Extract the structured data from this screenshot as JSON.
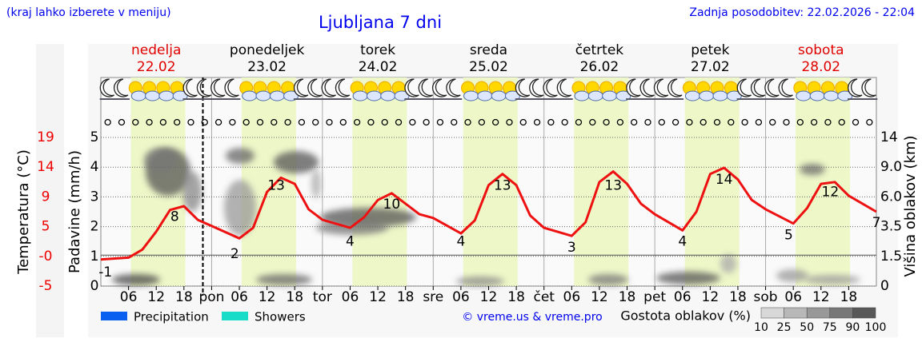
{
  "chart_data": {
    "type": "meteogram",
    "title": "Ljubljana 7 dni",
    "subtitle": "(kraj lahko izberete v meniju)",
    "updated": "Zadnja posodobitev: 22.02.2026 - 22:04",
    "credit": "© vreme.us & vreme.pro",
    "temp_label": "Temperatura (°C)",
    "precip_label": "Padavine (mm/h)",
    "cloud_height_label": "Višina oblakov (km)",
    "days": [
      {
        "name": "nedelja",
        "date": "22.02",
        "color": "#e00000"
      },
      {
        "name": "ponedeljek",
        "date": "23.02",
        "color": "#000000"
      },
      {
        "name": "torek",
        "date": "24.02",
        "color": "#000000"
      },
      {
        "name": "sreda",
        "date": "25.02",
        "color": "#000000"
      },
      {
        "name": "četrtek",
        "date": "26.02",
        "color": "#000000"
      },
      {
        "name": "petek",
        "date": "27.02",
        "color": "#000000"
      },
      {
        "name": "sobota",
        "date": "28.02",
        "color": "#e00000"
      }
    ],
    "xlim": [
      0,
      168
    ],
    "xticks": [
      {
        "value": 6,
        "label": "06"
      },
      {
        "value": 12,
        "label": "12"
      },
      {
        "value": 18,
        "label": "18"
      },
      {
        "value": 24,
        "label": "pon"
      },
      {
        "value": 30,
        "label": "06"
      },
      {
        "value": 36,
        "label": "12"
      },
      {
        "value": 42,
        "label": "18"
      },
      {
        "value": 48,
        "label": "tor"
      },
      {
        "value": 54,
        "label": "06"
      },
      {
        "value": 60,
        "label": "12"
      },
      {
        "value": 66,
        "label": "18"
      },
      {
        "value": 72,
        "label": "sre"
      },
      {
        "value": 78,
        "label": "06"
      },
      {
        "value": 84,
        "label": "12"
      },
      {
        "value": 90,
        "label": "18"
      },
      {
        "value": 96,
        "label": "čet"
      },
      {
        "value": 102,
        "label": "06"
      },
      {
        "value": 108,
        "label": "12"
      },
      {
        "value": 114,
        "label": "18"
      },
      {
        "value": 120,
        "label": "pet"
      },
      {
        "value": 126,
        "label": "06"
      },
      {
        "value": 132,
        "label": "12"
      },
      {
        "value": 138,
        "label": "18"
      },
      {
        "value": 144,
        "label": "sob"
      },
      {
        "value": 150,
        "label": "06"
      },
      {
        "value": 156,
        "label": "12"
      },
      {
        "value": 162,
        "label": "18"
      }
    ],
    "daylight_hours": [
      6.5,
      18.3
    ],
    "now_x": 22.1,
    "ylim": [
      0,
      5
    ],
    "yticks": [
      0,
      1,
      2,
      3,
      4,
      5
    ],
    "temp_lim": [
      -5,
      19
    ],
    "temp_ticks": [
      {
        "value": -5,
        "label": "-5"
      },
      {
        "value": -0.2,
        "label": "-0"
      },
      {
        "value": 4.6,
        "label": "5"
      },
      {
        "value": 9.4,
        "label": "9"
      },
      {
        "value": 14.2,
        "label": "14"
      },
      {
        "value": 19,
        "label": "19"
      }
    ],
    "temp_color": "#ee0000",
    "y2lim": [
      0,
      14
    ],
    "y2ticks": [
      0,
      1.5,
      3.5,
      {
        "value": 6,
        "label": "6.0"
      },
      {
        "value": 9,
        "label": "9.0"
      },
      14
    ],
    "grid": true,
    "temperature": {
      "color": "#ee1111",
      "x": [
        0,
        6,
        9,
        12,
        15,
        18,
        21,
        24,
        30,
        33,
        36,
        39,
        42,
        45,
        48,
        54,
        57,
        60,
        63,
        66,
        69,
        72,
        78,
        81,
        84,
        87,
        90,
        93,
        96,
        102,
        105,
        108,
        111,
        114,
        117,
        120,
        126,
        129,
        132,
        135,
        138,
        141,
        144,
        150,
        153,
        156,
        159,
        162,
        168
      ],
      "values": [
        -0.7,
        -0.4,
        0.9,
        3.8,
        7.3,
        7.9,
        5.7,
        4.7,
        2.7,
        4.4,
        10.2,
        12.5,
        11.5,
        7.4,
        5.7,
        4.4,
        6.1,
        8.9,
        10.0,
        8.3,
        6.6,
        6.0,
        3.5,
        5.6,
        11.3,
        13.1,
        11.3,
        6.4,
        4.4,
        3.1,
        5.3,
        11.8,
        13.5,
        11.5,
        8.3,
        6.6,
        4.0,
        7.0,
        13.1,
        14.1,
        12.2,
        8.9,
        7.4,
        5.1,
        7.6,
        11.5,
        11.8,
        9.6,
        7.0
      ]
    },
    "temp_labels": {
      "x": [
        1,
        16,
        29,
        38,
        54,
        63,
        78,
        87,
        102,
        111,
        126,
        135,
        149,
        158,
        168
      ],
      "values": [
        -1,
        8,
        2,
        13,
        4,
        10,
        4,
        13,
        3,
        13,
        4,
        14,
        5,
        12,
        7
      ]
    },
    "legend": [
      {
        "name": "Precipitation",
        "color": "#0a5ff0"
      },
      {
        "name": "Showers",
        "color": "#18dcc8"
      }
    ],
    "cloud_scale": {
      "title": "Gostota oblakov (%)",
      "ticks": [
        10,
        25,
        50,
        75,
        90,
        100
      ],
      "colors": [
        "#d8d8d8",
        "#b8b8b8",
        "#989898",
        "#787878",
        "#585858"
      ]
    }
  }
}
